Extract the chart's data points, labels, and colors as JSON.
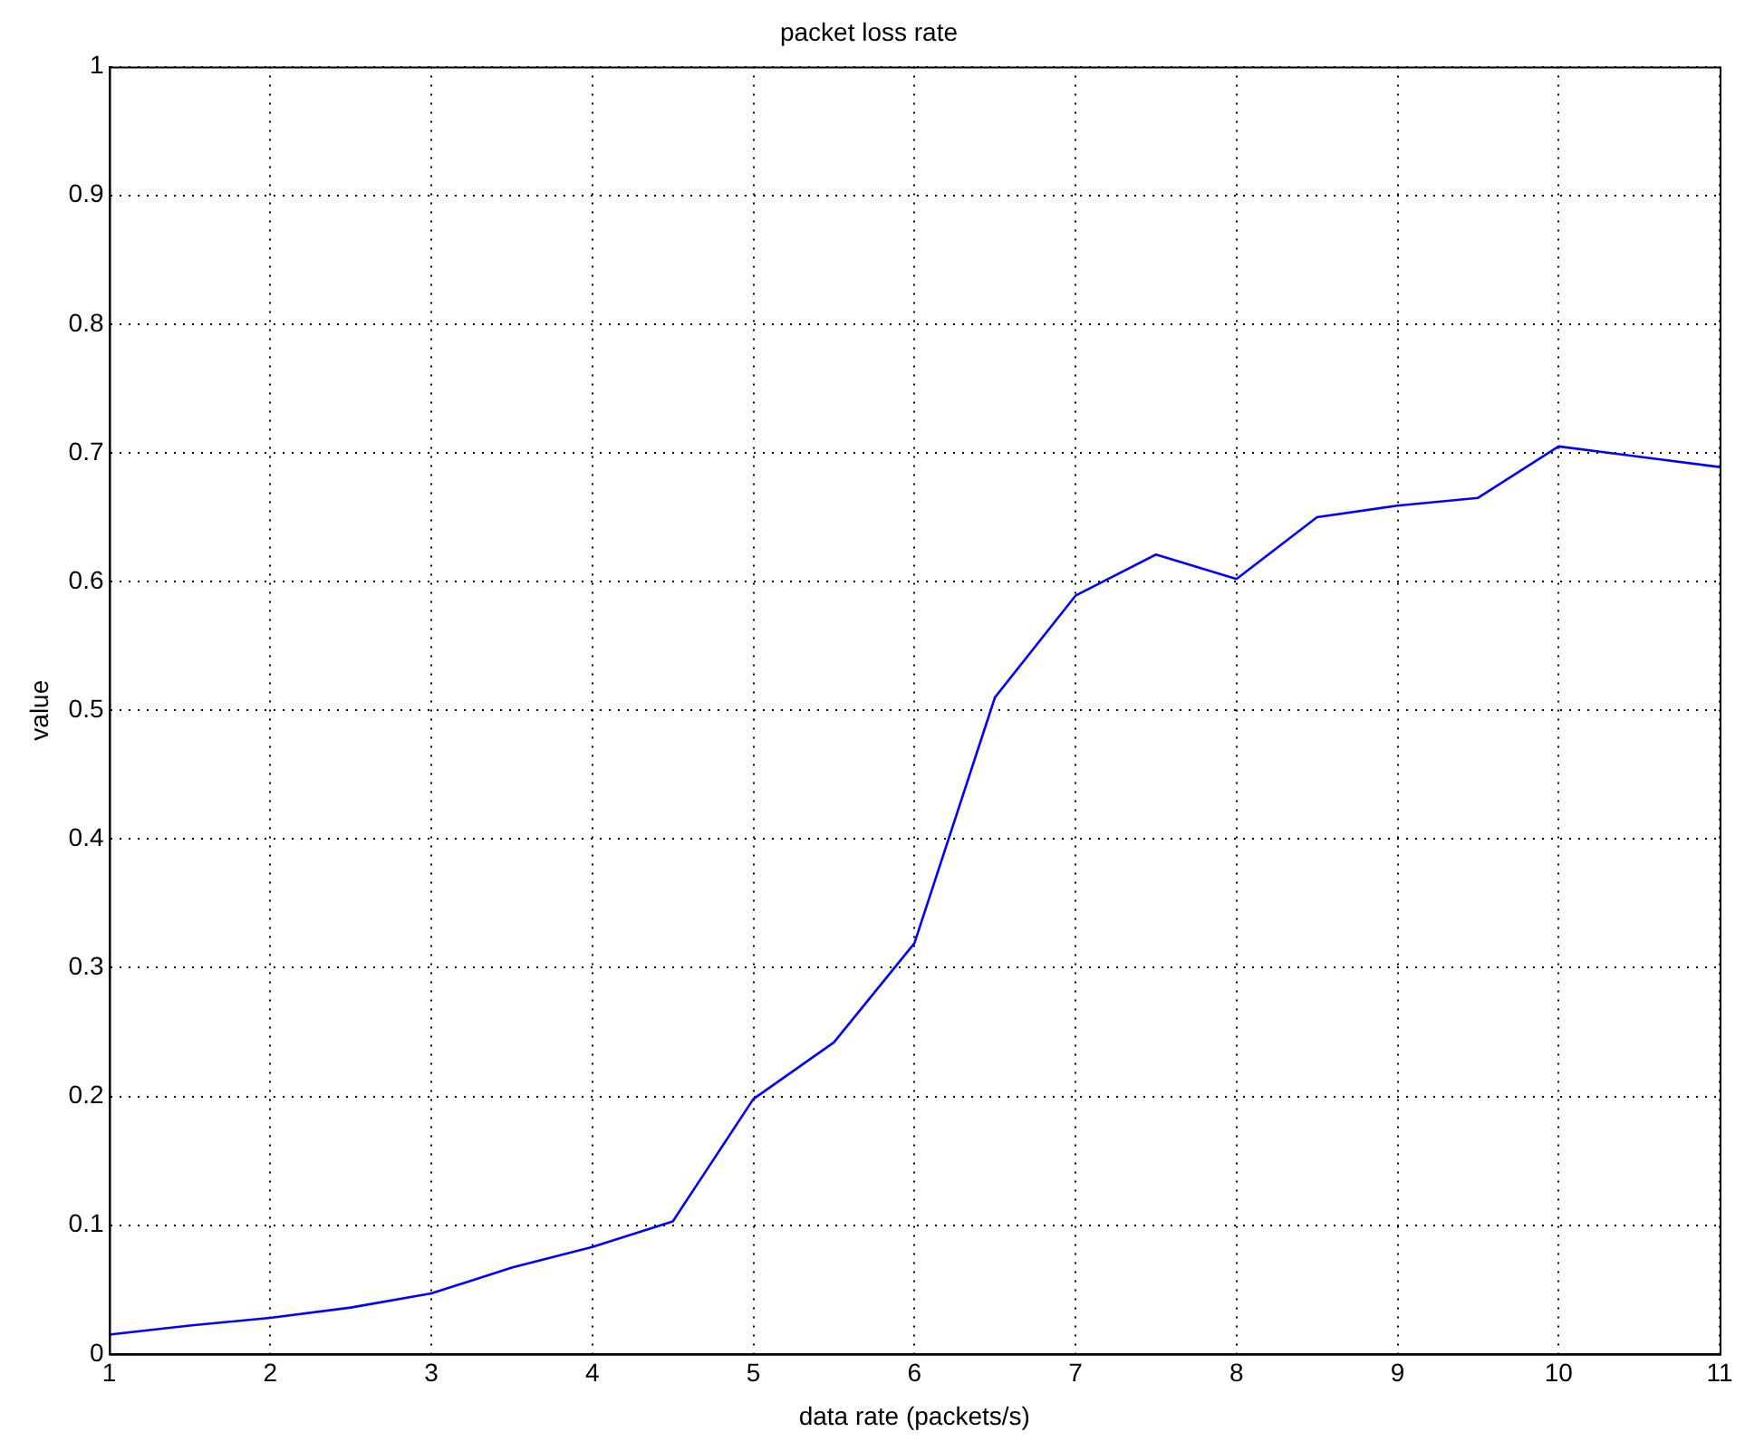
{
  "chart_data": {
    "type": "line",
    "title": "packet loss rate",
    "xlabel": "data rate (packets/s)",
    "ylabel": "value",
    "x": [
      1,
      1.5,
      2,
      2.5,
      3,
      3.5,
      4,
      4.5,
      5,
      5.5,
      6,
      6.5,
      7,
      7.5,
      8,
      8.5,
      9,
      9.5,
      10,
      10.5,
      11
    ],
    "series": [
      {
        "color": "#0000ff",
        "values": [
          0.015,
          0.022,
          0.028,
          0.036,
          0.047,
          0.067,
          0.083,
          0.103,
          0.198,
          0.242,
          0.319,
          0.51,
          0.589,
          0.621,
          0.602,
          0.65,
          0.659,
          0.665,
          0.705,
          0.697,
          0.689
        ]
      }
    ],
    "xlim": [
      1,
      11
    ],
    "xticks": [
      1,
      2,
      3,
      4,
      5,
      6,
      7,
      8,
      9,
      10,
      11
    ],
    "ylim": [
      0,
      1
    ],
    "yticks": [
      0,
      0.1,
      0.2,
      0.3,
      0.4,
      0.5,
      0.6,
      0.7,
      0.8,
      0.9,
      1
    ],
    "grid": true,
    "marker": "none",
    "line_style": "solid",
    "legend": false
  }
}
